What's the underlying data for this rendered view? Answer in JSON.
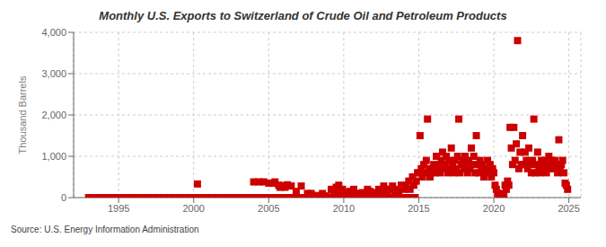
{
  "chart_data": {
    "type": "scatter",
    "title": "Monthly U.S. Exports to Switzerland of Crude Oil and Petroleum Products",
    "ylabel": "Thousand Barrels",
    "annotations": [
      "Source: U.S. Energy Information Administration"
    ],
    "color": "#cc0000",
    "marker": "square",
    "grid": true,
    "xlim": [
      1992.0,
      2025.8
    ],
    "xticks": [
      1995,
      2000,
      2005,
      2010,
      2015,
      2020,
      2025
    ],
    "ylim": [
      0,
      4000
    ],
    "yticks": [
      0,
      {
        "value": 1000,
        "label": "1,000"
      },
      {
        "value": 2000,
        "label": "2,000"
      },
      {
        "value": 3000,
        "label": "3,000"
      },
      {
        "value": 4000,
        "label": "4,000"
      }
    ],
    "x": [
      1993.0,
      1993.083,
      1993.167,
      1993.25,
      1993.333,
      1993.417,
      1993.5,
      1993.583,
      1993.667,
      1993.75,
      1993.833,
      1993.917,
      1994.0,
      1994.083,
      1994.167,
      1994.25,
      1994.333,
      1994.417,
      1994.5,
      1994.583,
      1994.667,
      1994.75,
      1994.833,
      1994.917,
      1995.0,
      1995.083,
      1995.167,
      1995.25,
      1995.333,
      1995.417,
      1995.5,
      1995.583,
      1995.667,
      1995.75,
      1995.833,
      1995.917,
      1996.0,
      1996.083,
      1996.167,
      1996.25,
      1996.333,
      1996.417,
      1996.5,
      1996.583,
      1996.667,
      1996.75,
      1996.833,
      1996.917,
      1997.0,
      1997.083,
      1997.167,
      1997.25,
      1997.333,
      1997.417,
      1997.5,
      1997.583,
      1997.667,
      1997.75,
      1997.833,
      1997.917,
      1998.0,
      1998.083,
      1998.167,
      1998.25,
      1998.333,
      1998.417,
      1998.5,
      1998.583,
      1998.667,
      1998.75,
      1998.833,
      1998.917,
      1999.0,
      1999.083,
      1999.167,
      1999.25,
      1999.333,
      1999.417,
      1999.5,
      1999.583,
      1999.667,
      1999.75,
      1999.833,
      1999.917,
      2000.0,
      2000.083,
      2000.167,
      2000.25,
      2000.333,
      2000.417,
      2000.5,
      2000.583,
      2000.667,
      2000.75,
      2000.833,
      2000.917,
      2001.0,
      2001.083,
      2001.167,
      2001.25,
      2001.333,
      2001.417,
      2001.5,
      2001.583,
      2001.667,
      2001.75,
      2001.833,
      2001.917,
      2002.0,
      2002.083,
      2002.167,
      2002.25,
      2002.333,
      2002.417,
      2002.5,
      2002.583,
      2002.667,
      2002.75,
      2002.833,
      2002.917,
      2003.0,
      2003.083,
      2003.167,
      2003.25,
      2003.333,
      2003.417,
      2003.5,
      2003.583,
      2003.667,
      2003.75,
      2003.833,
      2003.917,
      2004.0,
      2004.083,
      2004.167,
      2004.25,
      2004.333,
      2004.417,
      2004.5,
      2004.583,
      2004.667,
      2004.75,
      2004.833,
      2004.917,
      2005.0,
      2005.083,
      2005.167,
      2005.25,
      2005.333,
      2005.417,
      2005.5,
      2005.583,
      2005.667,
      2005.75,
      2005.833,
      2005.917,
      2006.0,
      2006.083,
      2006.167,
      2006.25,
      2006.333,
      2006.417,
      2006.5,
      2006.583,
      2006.667,
      2006.75,
      2006.833,
      2006.917,
      2007.0,
      2007.083,
      2007.167,
      2007.25,
      2007.333,
      2007.417,
      2007.5,
      2007.583,
      2007.667,
      2007.75,
      2007.833,
      2007.917,
      2008.0,
      2008.083,
      2008.167,
      2008.25,
      2008.333,
      2008.417,
      2008.5,
      2008.583,
      2008.667,
      2008.75,
      2008.833,
      2008.917,
      2009.0,
      2009.083,
      2009.167,
      2009.25,
      2009.333,
      2009.417,
      2009.5,
      2009.583,
      2009.667,
      2009.75,
      2009.833,
      2009.917,
      2010.0,
      2010.083,
      2010.167,
      2010.25,
      2010.333,
      2010.417,
      2010.5,
      2010.583,
      2010.667,
      2010.75,
      2010.833,
      2010.917,
      2011.0,
      2011.083,
      2011.167,
      2011.25,
      2011.333,
      2011.417,
      2011.5,
      2011.583,
      2011.667,
      2011.75,
      2011.833,
      2011.917,
      2012.0,
      2012.083,
      2012.167,
      2012.25,
      2012.333,
      2012.417,
      2012.5,
      2012.583,
      2012.667,
      2012.75,
      2012.833,
      2012.917,
      2013.0,
      2013.083,
      2013.167,
      2013.25,
      2013.333,
      2013.417,
      2013.5,
      2013.583,
      2013.667,
      2013.75,
      2013.833,
      2013.917,
      2014.0,
      2014.083,
      2014.167,
      2014.25,
      2014.333,
      2014.417,
      2014.5,
      2014.583,
      2014.667,
      2014.75,
      2014.833,
      2014.917,
      2015.0,
      2015.083,
      2015.167,
      2015.25,
      2015.333,
      2015.417,
      2015.5,
      2015.583,
      2015.667,
      2015.75,
      2015.833,
      2015.917,
      2016.0,
      2016.083,
      2016.167,
      2016.25,
      2016.333,
      2016.417,
      2016.5,
      2016.583,
      2016.667,
      2016.75,
      2016.833,
      2016.917,
      2017.0,
      2017.083,
      2017.167,
      2017.25,
      2017.333,
      2017.417,
      2017.5,
      2017.583,
      2017.667,
      2017.75,
      2017.833,
      2017.917,
      2018.0,
      2018.083,
      2018.167,
      2018.25,
      2018.333,
      2018.417,
      2018.5,
      2018.583,
      2018.667,
      2018.75,
      2018.833,
      2018.917,
      2019.0,
      2019.083,
      2019.167,
      2019.25,
      2019.333,
      2019.417,
      2019.5,
      2019.583,
      2019.667,
      2019.75,
      2019.833,
      2019.917,
      2020.0,
      2020.083,
      2020.167,
      2020.25,
      2020.333,
      2020.417,
      2020.5,
      2020.583,
      2020.667,
      2020.75,
      2020.833,
      2020.917,
      2021.0,
      2021.083,
      2021.167,
      2021.25,
      2021.333,
      2021.417,
      2021.5,
      2021.583,
      2021.667,
      2021.75,
      2021.833,
      2021.917,
      2022.0,
      2022.083,
      2022.167,
      2022.25,
      2022.333,
      2022.417,
      2022.5,
      2022.583,
      2022.667,
      2022.75,
      2022.833,
      2022.917,
      2023.0,
      2023.083,
      2023.167,
      2023.25,
      2023.333,
      2023.417,
      2023.5,
      2023.583,
      2023.667,
      2023.75,
      2023.833,
      2023.917,
      2024.0,
      2024.083,
      2024.167,
      2024.25,
      2024.333,
      2024.417,
      2024.5,
      2024.583,
      2024.667,
      2024.75,
      2024.833,
      2024.917
    ],
    "values": [
      0,
      0,
      0,
      0,
      0,
      0,
      0,
      0,
      0,
      0,
      0,
      0,
      0,
      0,
      0,
      0,
      0,
      0,
      0,
      0,
      0,
      0,
      0,
      0,
      0,
      0,
      0,
      0,
      0,
      0,
      0,
      0,
      0,
      0,
      0,
      0,
      0,
      0,
      0,
      0,
      0,
      0,
      0,
      0,
      0,
      0,
      0,
      0,
      0,
      0,
      0,
      0,
      0,
      0,
      0,
      0,
      0,
      0,
      0,
      0,
      0,
      0,
      0,
      0,
      0,
      0,
      0,
      0,
      0,
      0,
      0,
      0,
      0,
      0,
      0,
      0,
      0,
      0,
      0,
      0,
      0,
      0,
      0,
      0,
      0,
      0,
      0,
      330,
      0,
      0,
      0,
      0,
      0,
      0,
      0,
      0,
      0,
      0,
      0,
      0,
      0,
      0,
      0,
      0,
      0,
      0,
      0,
      0,
      0,
      0,
      0,
      0,
      0,
      0,
      0,
      0,
      0,
      0,
      0,
      0,
      0,
      0,
      0,
      0,
      0,
      0,
      0,
      0,
      0,
      0,
      0,
      0,
      380,
      0,
      0,
      0,
      380,
      0,
      0,
      0,
      380,
      0,
      0,
      0,
      350,
      0,
      0,
      350,
      0,
      380,
      0,
      0,
      300,
      250,
      0,
      290,
      0,
      250,
      0,
      310,
      0,
      0,
      280,
      0,
      0,
      0,
      150,
      0,
      0,
      0,
      280,
      0,
      0,
      0,
      0,
      100,
      0,
      0,
      100,
      0,
      0,
      0,
      50,
      0,
      0,
      30,
      0,
      100,
      0,
      0,
      40,
      0,
      0,
      0,
      200,
      0,
      100,
      0,
      250,
      0,
      300,
      150,
      0,
      200,
      0,
      120,
      0,
      100,
      0,
      150,
      80,
      0,
      200,
      0,
      100,
      60,
      0,
      100,
      0,
      120,
      0,
      80,
      0,
      200,
      0,
      150,
      0,
      100,
      80,
      0,
      120,
      0,
      200,
      0,
      150,
      0,
      280,
      0,
      200,
      100,
      0,
      200,
      0,
      280,
      0,
      150,
      0,
      200,
      120,
      0,
      300,
      0,
      200,
      0,
      300,
      0,
      400,
      200,
      0,
      500,
      300,
      0,
      400,
      600,
      600,
      1500,
      700,
      500,
      800,
      600,
      900,
      1900,
      700,
      500,
      600,
      700,
      800,
      600,
      1000,
      700,
      800,
      600,
      900,
      1100,
      700,
      800,
      1000,
      600,
      900,
      700,
      1200,
      800,
      600,
      900,
      700,
      1000,
      1900,
      600,
      800,
      900,
      700,
      1000,
      800,
      600,
      900,
      700,
      1200,
      800,
      1000,
      600,
      1500,
      800,
      600,
      900,
      700,
      800,
      500,
      600,
      700,
      900,
      600,
      800,
      500,
      700,
      600,
      300,
      200,
      100,
      0,
      50,
      0,
      100,
      50,
      300,
      200,
      400,
      300,
      1700,
      1200,
      800,
      1700,
      900,
      1300,
      3800,
      700,
      1100,
      800,
      1500,
      800,
      1100,
      900,
      700,
      1200,
      800,
      600,
      900,
      1900,
      600,
      800,
      1100,
      700,
      600,
      900,
      800,
      700,
      900,
      600,
      800,
      1000,
      700,
      900,
      800,
      700,
      900,
      800,
      600,
      1400,
      700,
      800,
      900,
      600,
      350,
      300,
      200
    ]
  }
}
